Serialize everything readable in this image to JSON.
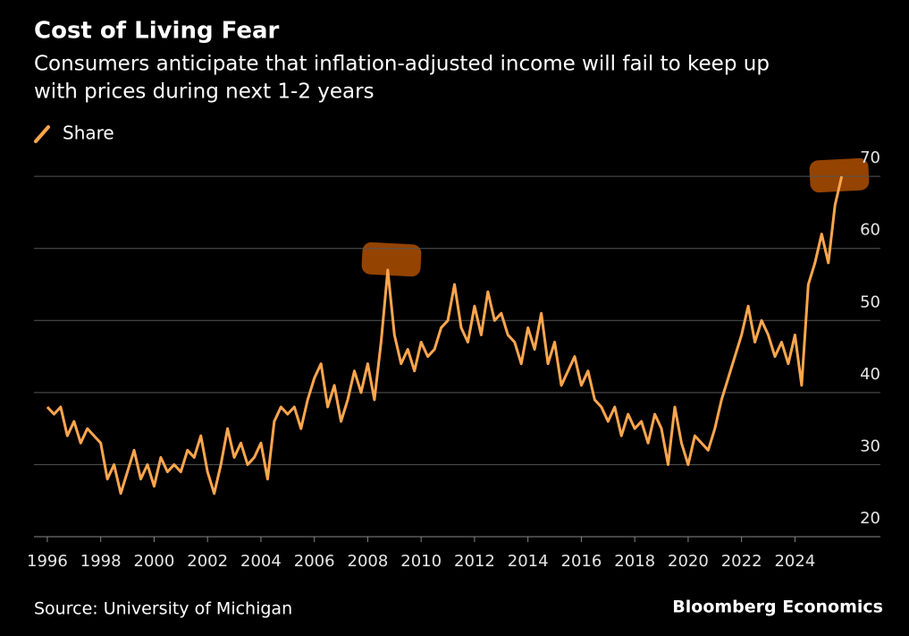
{
  "chart_data": {
    "type": "line",
    "title": "Cost of Living Fear",
    "subtitle": [
      "Consumers anticipate that inflation-adjusted income will fail to keep up",
      "with prices during next 1-2 years"
    ],
    "source": "Source: University of Michigan",
    "brand": "Bloomberg Economics",
    "x": [
      1996,
      1996.25,
      1996.5,
      1996.75,
      1997,
      1997.25,
      1997.5,
      1997.75,
      1998,
      1998.25,
      1998.5,
      1998.75,
      1999,
      1999.25,
      1999.5,
      1999.75,
      2000,
      2000.25,
      2000.5,
      2000.75,
      2001,
      2001.25,
      2001.5,
      2001.75,
      2002,
      2002.25,
      2002.5,
      2002.75,
      2003,
      2003.25,
      2003.5,
      2003.75,
      2004,
      2004.25,
      2004.5,
      2004.75,
      2005,
      2005.25,
      2005.5,
      2005.75,
      2006,
      2006.25,
      2006.5,
      2006.75,
      2007,
      2007.25,
      2007.5,
      2007.75,
      2008,
      2008.25,
      2008.5,
      2008.75,
      2009,
      2009.25,
      2009.5,
      2009.75,
      2010,
      2010.25,
      2010.5,
      2010.75,
      2011,
      2011.25,
      2011.5,
      2011.75,
      2012,
      2012.25,
      2012.5,
      2012.75,
      2013,
      2013.25,
      2013.5,
      2013.75,
      2014,
      2014.25,
      2014.5,
      2014.75,
      2015,
      2015.25,
      2015.5,
      2015.75,
      2016,
      2016.25,
      2016.5,
      2016.75,
      2017,
      2017.25,
      2017.5,
      2017.75,
      2018,
      2018.25,
      2018.5,
      2018.75,
      2019,
      2019.25,
      2019.5,
      2019.75,
      2020,
      2020.25,
      2020.5,
      2020.75,
      2021,
      2021.25,
      2021.5,
      2021.75,
      2022,
      2022.25,
      2022.5,
      2022.75,
      2023,
      2023.25,
      2023.5,
      2023.75,
      2024,
      2024.25,
      2024.5,
      2024.75,
      2025,
      2025.25,
      2025.5,
      2025.75
    ],
    "series": [
      {
        "name": "Share",
        "color": "#ffa64d",
        "values": [
          38,
          37,
          38,
          34,
          36,
          33,
          35,
          34,
          33,
          28,
          30,
          26,
          29,
          32,
          28,
          30,
          27,
          31,
          29,
          30,
          29,
          32,
          31,
          34,
          29,
          26,
          30,
          35,
          31,
          33,
          30,
          31,
          33,
          28,
          36,
          38,
          37,
          38,
          35,
          39,
          42,
          44,
          38,
          41,
          36,
          39,
          43,
          40,
          44,
          39,
          47,
          57,
          48,
          44,
          46,
          43,
          47,
          45,
          46,
          49,
          50,
          55,
          49,
          47,
          52,
          48,
          54,
          50,
          51,
          48,
          47,
          44,
          49,
          46,
          51,
          44,
          47,
          41,
          43,
          45,
          41,
          43,
          39,
          38,
          36,
          38,
          34,
          37,
          35,
          36,
          33,
          37,
          35,
          30,
          38,
          33,
          30,
          34,
          33,
          32,
          35,
          39,
          42,
          45,
          48,
          52,
          47,
          50,
          48,
          45,
          47,
          44,
          48,
          41,
          55,
          58,
          62,
          58,
          66,
          70
        ]
      }
    ],
    "xlim": [
      1995.5,
      2027.2
    ],
    "ylim": [
      20,
      73
    ],
    "xticks": [
      1996,
      1998,
      2000,
      2002,
      2004,
      2006,
      2008,
      2010,
      2012,
      2014,
      2016,
      2018,
      2020,
      2022,
      2024
    ],
    "yticks": [
      20,
      30,
      40,
      50,
      60,
      70
    ],
    "grid": true
  }
}
